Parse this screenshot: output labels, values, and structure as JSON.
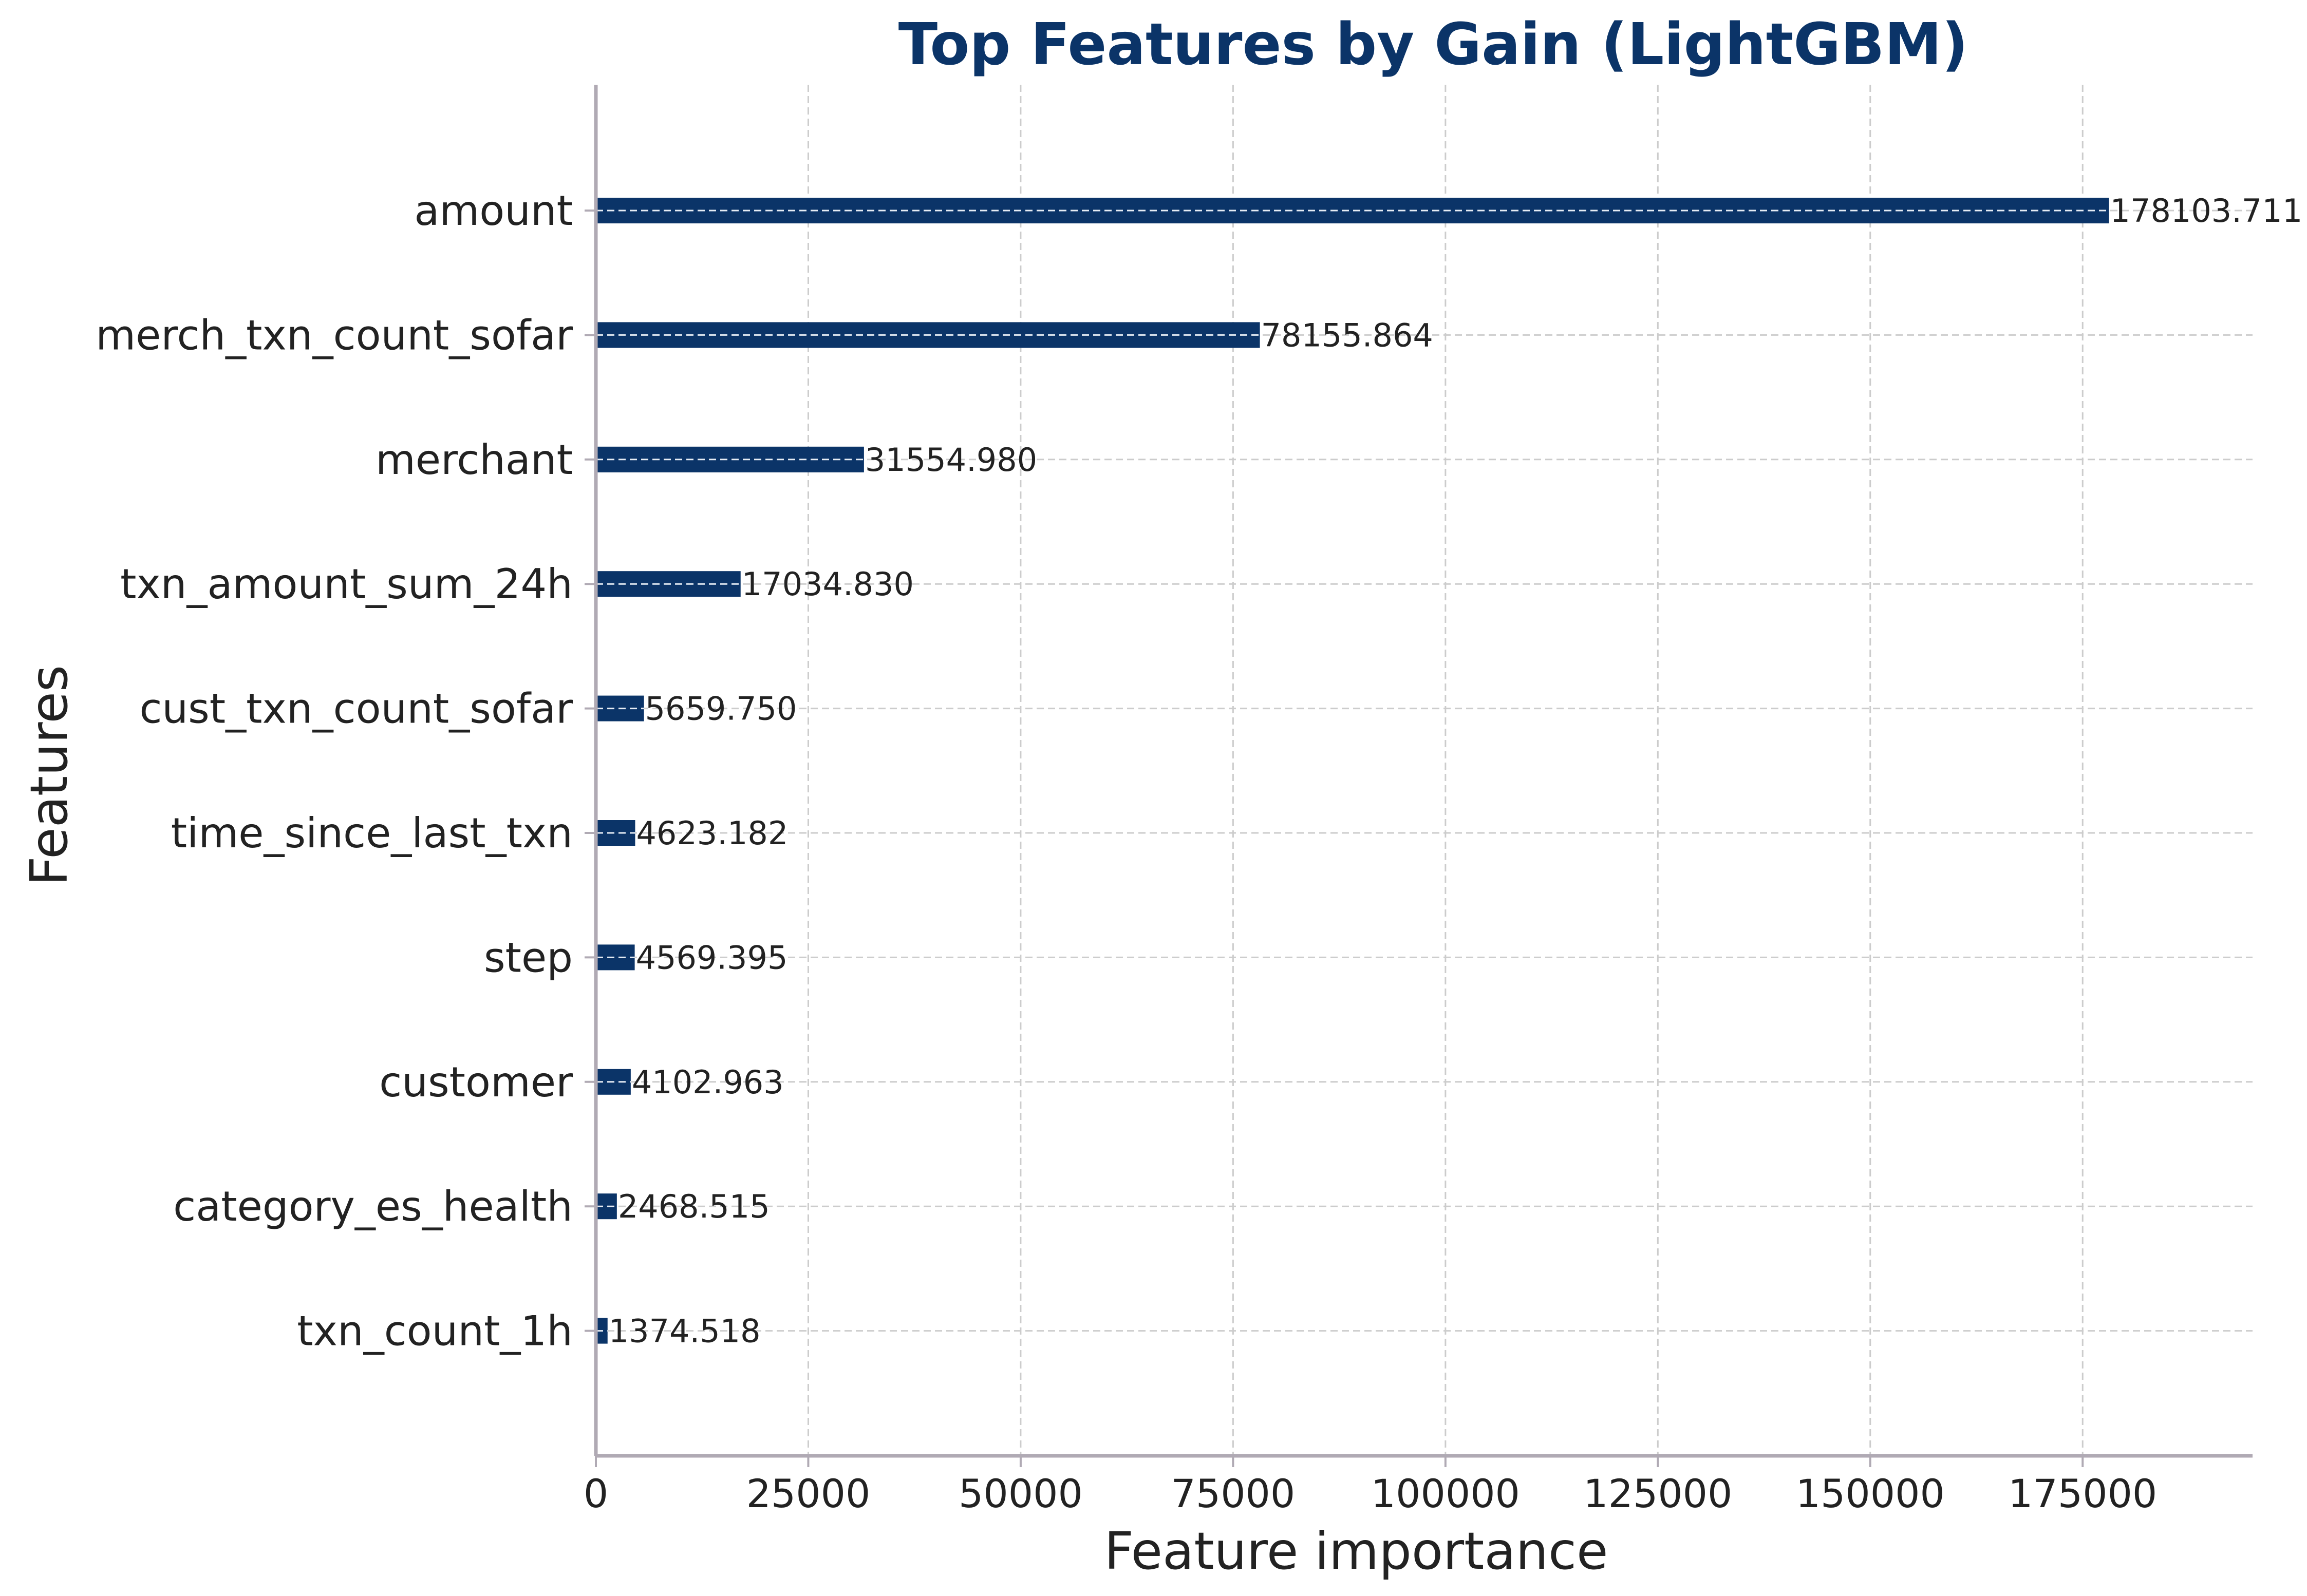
{
  "colors": {
    "bar": "#0b3468",
    "title": "#0b3468",
    "text": "#222222",
    "grid": "#cccccc",
    "axis": "#b0aab4",
    "background": "#ffffff"
  },
  "chart_data": {
    "type": "bar",
    "orientation": "horizontal",
    "title": "Top Features by Gain (LightGBM)",
    "xlabel": "Feature importance",
    "ylabel": "Features",
    "xlim": [
      0,
      195000
    ],
    "xticks": [
      0,
      25000,
      50000,
      75000,
      100000,
      125000,
      150000,
      175000
    ],
    "xtick_labels": [
      "0",
      "25000",
      "50000",
      "75000",
      "100000",
      "125000",
      "150000",
      "175000"
    ],
    "grid": true,
    "grid_style": "dashed",
    "categories": [
      "amount",
      "merch_txn_count_sofar",
      "merchant",
      "txn_amount_sum_24h",
      "cust_txn_count_sofar",
      "time_since_last_txn",
      "step",
      "customer",
      "category_es_health",
      "txn_count_1h"
    ],
    "values": [
      178103.711,
      78155.864,
      31554.98,
      17034.83,
      5659.75,
      4623.182,
      4569.395,
      4102.963,
      2468.515,
      1374.518
    ],
    "data_labels": [
      "178103.711",
      "78155.864",
      "31554.980",
      "17034.830",
      "5659.750",
      "4623.182",
      "4569.395",
      "4102.963",
      "2468.515",
      "1374.518"
    ]
  }
}
